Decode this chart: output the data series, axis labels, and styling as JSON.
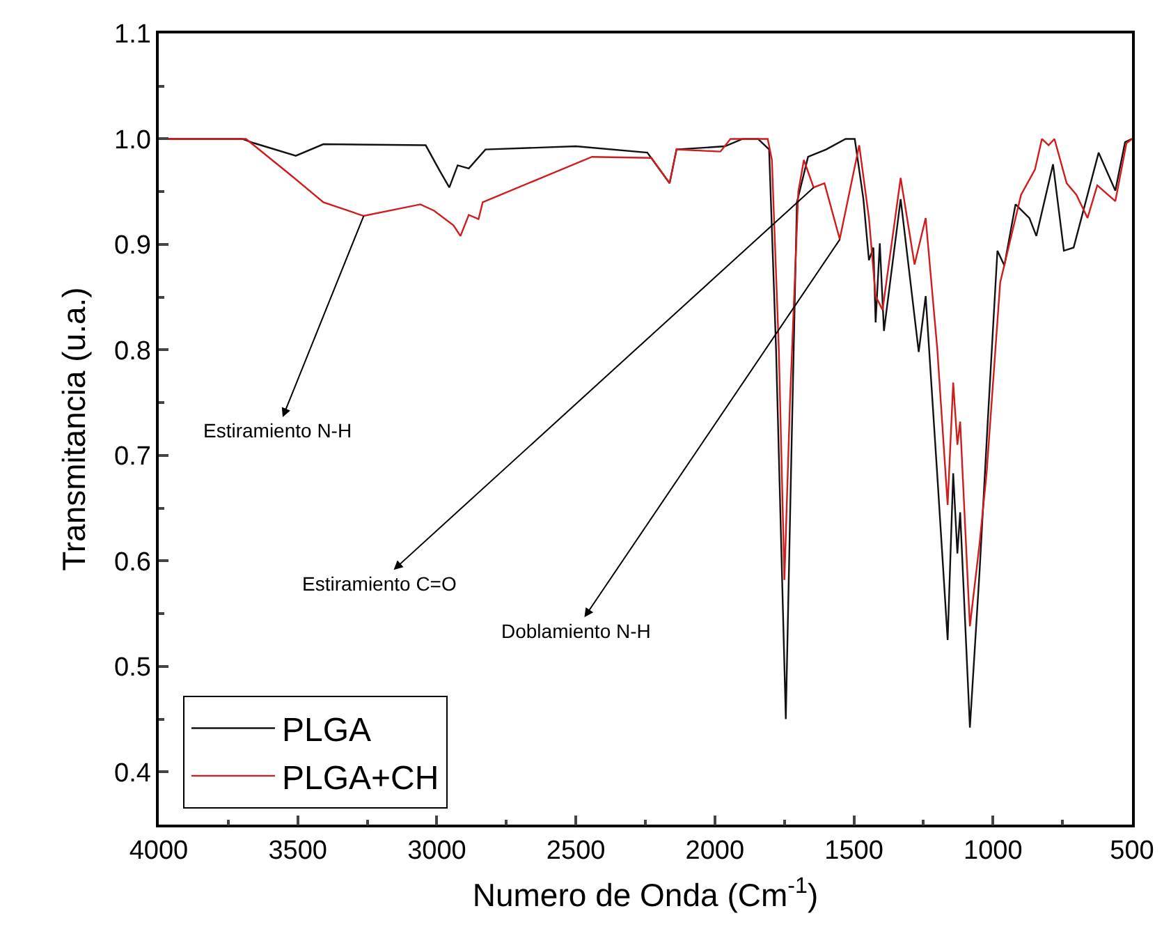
{
  "chart_data": {
    "type": "line",
    "xlabel": "Numero de Onda (Cm$^{-1}$)",
    "ylabel": "Transmitancia (u.a.)",
    "xlim": [
      4000,
      500
    ],
    "xticks": [
      4000,
      3500,
      3000,
      2500,
      2000,
      1500,
      1000,
      500
    ],
    "ylim": [
      0.35,
      1.1
    ],
    "yticks": [
      {
        "value": 0.4,
        "label": "0.4"
      },
      {
        "value": 0.5,
        "label": "0.5"
      },
      {
        "value": 0.6,
        "label": "0.6"
      },
      {
        "value": 0.7,
        "label": "0.7"
      },
      {
        "value": 0.8,
        "label": "0.8"
      },
      {
        "value": 0.9,
        "label": "0.9"
      },
      {
        "value": 1.0,
        "label": "1.0"
      },
      {
        "value": 1.1,
        "label": "1.1"
      }
    ],
    "grid": false,
    "legend": "bottom left",
    "marker": "none",
    "line_style": "solid",
    "series": [
      {
        "name": "PLGA",
        "color": "#111111",
        "x": [
          4000,
          3700,
          3657,
          3507,
          3408,
          3040,
          2990,
          2955,
          2925,
          2885,
          2825,
          2500,
          2243,
          2163,
          2138,
          1964,
          1900,
          1845,
          1805,
          1780,
          1745,
          1725,
          1705,
          1665,
          1600,
          1530,
          1497,
          1466,
          1446,
          1430,
          1422,
          1407,
          1392,
          1332,
          1267,
          1242,
          1200,
          1163,
          1143,
          1128,
          1118,
          1083,
          1048,
          1018,
          984,
          959,
          919,
          869,
          844,
          784,
          745,
          710,
          620,
          560,
          525,
          500
        ],
        "values": [
          1.0,
          1.0,
          0.996,
          0.984,
          0.995,
          0.994,
          0.97,
          0.954,
          0.975,
          0.972,
          0.99,
          0.993,
          0.987,
          0.958,
          0.99,
          0.993,
          1.0,
          1.0,
          0.99,
          0.8,
          0.45,
          0.7,
          0.94,
          0.983,
          0.99,
          1.0,
          1.0,
          0.943,
          0.885,
          0.897,
          0.826,
          0.901,
          0.818,
          0.943,
          0.798,
          0.851,
          0.68,
          0.525,
          0.683,
          0.607,
          0.646,
          0.442,
          0.591,
          0.736,
          0.894,
          0.88,
          0.938,
          0.925,
          0.908,
          0.976,
          0.894,
          0.897,
          0.987,
          0.951,
          0.997,
          1.0
        ]
      },
      {
        "name": "PLGA+CH",
        "color": "#d01c1c",
        "x": [
          4000,
          3686,
          3522,
          3408,
          3263,
          3059,
          3010,
          2940,
          2915,
          2885,
          2850,
          2835,
          2442,
          2228,
          2163,
          2138,
          1980,
          1944,
          1810,
          1795,
          1770,
          1750,
          1730,
          1700,
          1680,
          1645,
          1606,
          1551,
          1481,
          1446,
          1422,
          1397,
          1332,
          1282,
          1242,
          1200,
          1163,
          1143,
          1128,
          1118,
          1083,
          1048,
          1023,
          974,
          899,
          849,
          824,
          800,
          779,
          735,
          700,
          660,
          625,
          560,
          520,
          500
        ],
        "values": [
          1.0,
          1.0,
          0.965,
          0.94,
          0.927,
          0.938,
          0.932,
          0.918,
          0.908,
          0.928,
          0.924,
          0.94,
          0.983,
          0.982,
          0.958,
          0.99,
          0.988,
          1.0,
          1.0,
          0.98,
          0.8,
          0.582,
          0.75,
          0.95,
          0.98,
          0.954,
          0.958,
          0.905,
          0.994,
          0.925,
          0.851,
          0.838,
          0.963,
          0.881,
          0.925,
          0.8,
          0.653,
          0.769,
          0.71,
          0.732,
          0.538,
          0.617,
          0.683,
          0.864,
          0.947,
          0.971,
          1.0,
          0.994,
          1.0,
          0.958,
          0.947,
          0.925,
          0.956,
          0.941,
          0.996,
          1.0
        ]
      }
    ],
    "annotations": [
      {
        "text": "Estiramiento N-H",
        "x": 3263,
        "y": 0.927
      },
      {
        "text": "Estiramiento C=O",
        "x": 1645,
        "y": 0.954
      },
      {
        "text": "Doblamiento N-H",
        "x": 1550,
        "y": 0.905
      }
    ]
  }
}
